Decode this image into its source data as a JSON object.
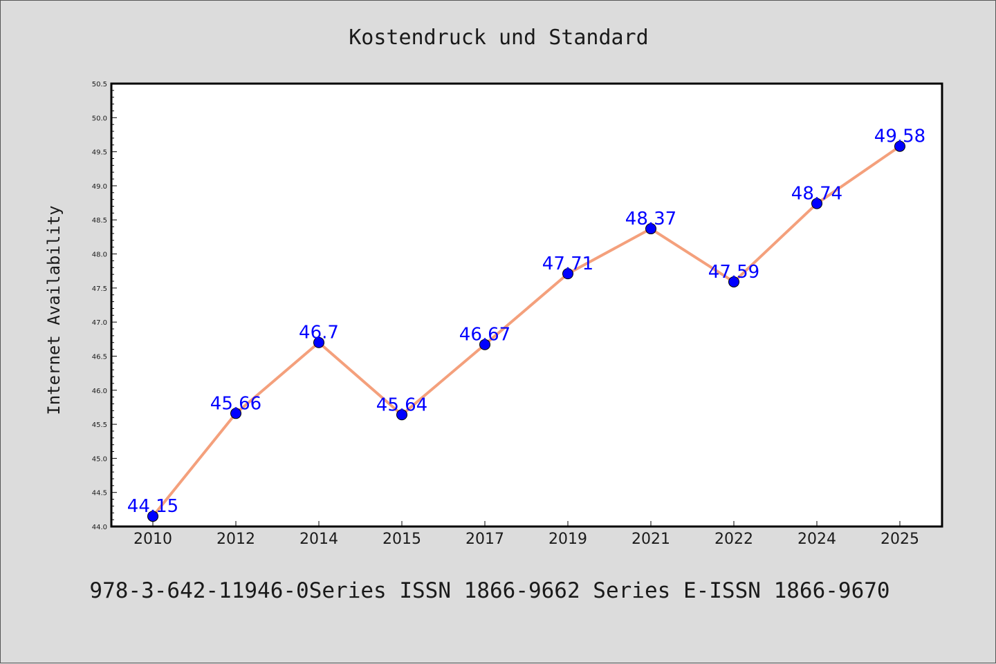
{
  "chart_data": {
    "type": "line",
    "title": "Kostendruck und Standard",
    "xlabel": "",
    "ylabel": "Internet Availability",
    "categories": [
      "2010",
      "2012",
      "2014",
      "2015",
      "2017",
      "2019",
      "2021",
      "2022",
      "2024",
      "2025"
    ],
    "series": [
      {
        "values": [
          44.15,
          45.66,
          46.7,
          45.64,
          46.67,
          47.71,
          48.37,
          47.59,
          48.74,
          49.58
        ],
        "data_labels": [
          "44.15",
          "45.66",
          "46.7",
          "45.64",
          "46.67",
          "47.71",
          "48.37",
          "47.59",
          "48.74",
          "49.58"
        ]
      }
    ],
    "ylim": [
      44.0,
      50.5
    ],
    "y_ticks": [
      "44.0",
      "44.5",
      "45.0",
      "45.5",
      "46.0",
      "46.5",
      "47.0",
      "47.5",
      "48.0",
      "48.5",
      "49.0",
      "49.5",
      "50.0",
      "50.5"
    ],
    "grid": false,
    "legend": "none",
    "footer": "978-3-642-11946-0Series ISSN 1866-9662 Series E-ISSN 1866-9670",
    "colors": {
      "background": "#dcdcdc",
      "plot_background": "#ffffff",
      "line": "#f4a07c",
      "marker": "#0000ff",
      "data_label": "#0000ff",
      "text": "#1a1a1a"
    }
  }
}
